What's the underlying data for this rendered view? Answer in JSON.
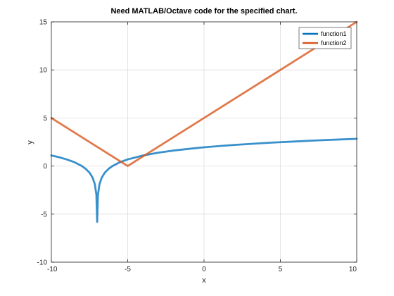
{
  "chart_data": {
    "type": "line",
    "title": "Need MATLAB/Octave code for the specified chart.",
    "xlabel": "x",
    "ylabel": "y",
    "xlim": [
      -10,
      10
    ],
    "ylim": [
      -10,
      15
    ],
    "xticks": [
      -10,
      -5,
      0,
      5,
      10
    ],
    "yticks": [
      -10,
      -5,
      0,
      5,
      10,
      15
    ],
    "grid": true,
    "legend_position": "top-right",
    "series": [
      {
        "name": "function1",
        "color": "#0072BD",
        "points": [
          [
            -10,
            1.1
          ],
          [
            -9.5,
            0.92
          ],
          [
            -9,
            0.69
          ],
          [
            -8.5,
            0.41
          ],
          [
            -8,
            0.0
          ],
          [
            -7.75,
            -0.29
          ],
          [
            -7.5,
            -0.69
          ],
          [
            -7.3,
            -1.2
          ],
          [
            -7.15,
            -1.9
          ],
          [
            -7.05,
            -3.0
          ],
          [
            -7.0,
            -5.8
          ],
          [
            -6.95,
            -3.0
          ],
          [
            -6.85,
            -1.9
          ],
          [
            -6.7,
            -1.2
          ],
          [
            -6.5,
            -0.69
          ],
          [
            -6.25,
            -0.29
          ],
          [
            -6,
            0.0
          ],
          [
            -5.5,
            0.41
          ],
          [
            -5,
            0.69
          ],
          [
            -4,
            1.1
          ],
          [
            -3,
            1.39
          ],
          [
            -2,
            1.61
          ],
          [
            -1,
            1.79
          ],
          [
            0,
            1.95
          ],
          [
            1,
            2.08
          ],
          [
            2,
            2.2
          ],
          [
            3,
            2.3
          ],
          [
            4,
            2.4
          ],
          [
            5,
            2.48
          ],
          [
            6,
            2.56
          ],
          [
            7,
            2.64
          ],
          [
            8,
            2.71
          ],
          [
            9,
            2.77
          ],
          [
            10,
            2.83
          ]
        ]
      },
      {
        "name": "function2",
        "color": "#D95319",
        "points": [
          [
            -10,
            5
          ],
          [
            -5,
            0
          ],
          [
            10,
            15
          ]
        ]
      }
    ]
  }
}
